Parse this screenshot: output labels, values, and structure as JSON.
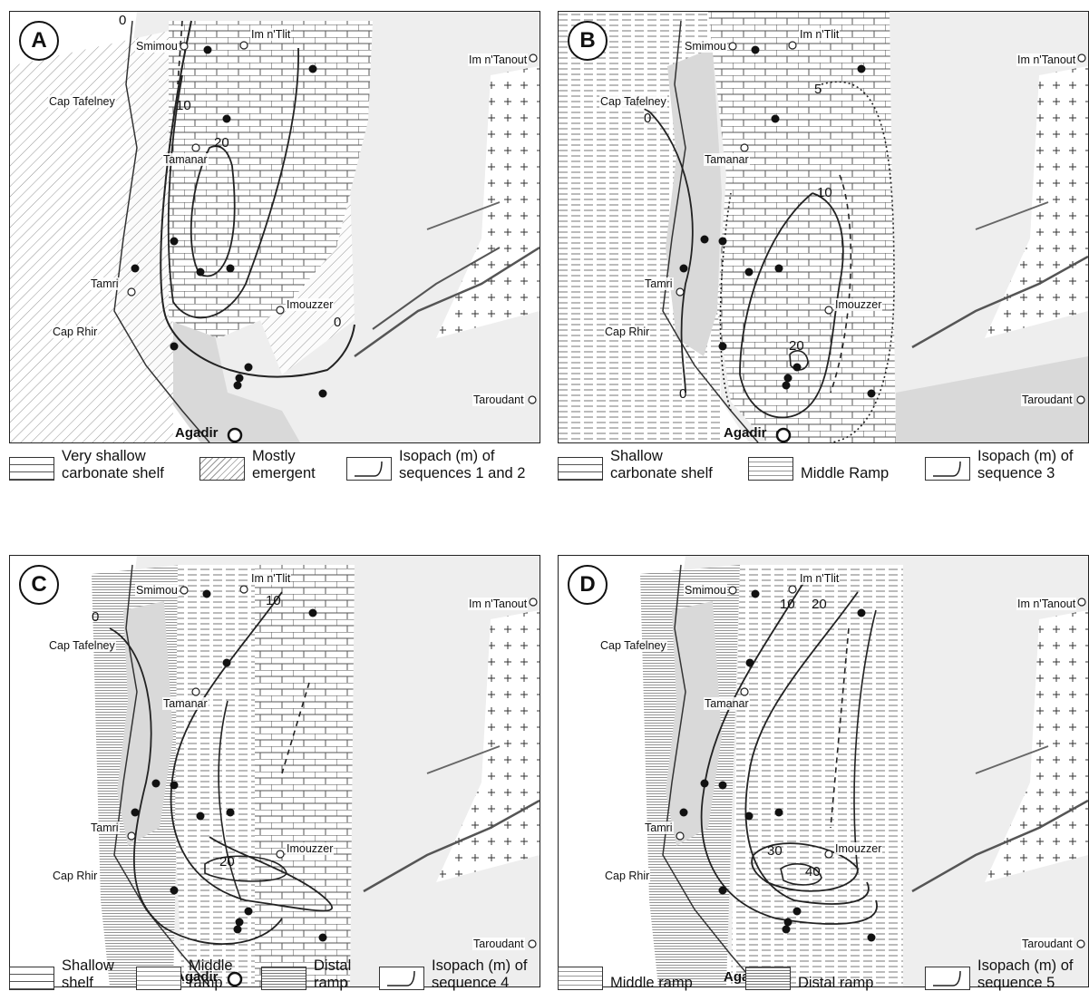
{
  "panels": [
    {
      "id": "A",
      "places": {
        "smimou": "Smimou",
        "im_tlit": "Im n'Tlit",
        "im_tanout": "Im n'Tanout",
        "cap_tafelney": "Cap Tafelney",
        "tamanar": "Tamanar",
        "tamri": "Tamri",
        "imouzzer": "Imouzzer",
        "cap_rhir": "Cap Rhir",
        "taroudant": "Taroudant",
        "agadir": "Agadir"
      },
      "isopach_labels": [
        "0",
        "10",
        "20",
        "0"
      ],
      "legend": [
        {
          "symbol": "brick-pattern",
          "text": "Very shallow carbonate shelf"
        },
        {
          "symbol": "diagonal-hatch",
          "text": "Mostly emergent"
        },
        {
          "symbol": "isopach-line",
          "text": "Isopach (m) of sequences 1 and 2"
        }
      ]
    },
    {
      "id": "B",
      "places": {
        "smimou": "Smimou",
        "im_tlit": "Im n'Tlit",
        "im_tanout": "Im n'Tanout",
        "cap_tafelney": "Cap Tafelney",
        "tamanar": "Tamanar",
        "tamri": "Tamri",
        "imouzzer": "Imouzzer",
        "cap_rhir": "Cap Rhir",
        "taroudant": "Taroudant",
        "agadir": "Agadir"
      },
      "isopach_labels": [
        "0",
        "5",
        "10",
        "20",
        "0"
      ],
      "legend": [
        {
          "symbol": "brick-pattern",
          "text": "Shallow carbonate shelf"
        },
        {
          "symbol": "dashed-lines",
          "text": "Middle Ramp"
        },
        {
          "symbol": "isopach-line",
          "text": "Isopach (m) of sequence 3"
        }
      ]
    },
    {
      "id": "C",
      "places": {
        "smimou": "Smimou",
        "im_tlit": "Im n'Tlit",
        "im_tanout": "Im n'Tanout",
        "cap_tafelney": "Cap Tafelney",
        "tamanar": "Tamanar",
        "tamri": "Tamri",
        "imouzzer": "Imouzzer",
        "cap_rhir": "Cap Rhir",
        "taroudant": "Taroudant",
        "agadir": "Agadir"
      },
      "isopach_labels": [
        "0",
        "10",
        "20"
      ],
      "legend": [
        {
          "symbol": "brick-pattern",
          "text": "Shallow shelf"
        },
        {
          "symbol": "dashed-lines",
          "text": "Middle ramp"
        },
        {
          "symbol": "fine-lines",
          "text": "Distal ramp"
        },
        {
          "symbol": "isopach-line",
          "text": "Isopach (m) of sequence 4"
        }
      ]
    },
    {
      "id": "D",
      "places": {
        "smimou": "Smimou",
        "im_tlit": "Im n'Tlit",
        "im_tanout": "Im n'Tanout",
        "cap_tafelney": "Cap Tafelney",
        "tamanar": "Tamanar",
        "tamri": "Tamri",
        "imouzzer": "Imouzzer",
        "cap_rhir": "Cap Rhir",
        "taroudant": "Taroudant",
        "agadir": "Agadir"
      },
      "isopach_labels": [
        "10",
        "20",
        "30",
        "40"
      ],
      "legend": [
        {
          "symbol": "dashed-lines",
          "text": "Middle ramp"
        },
        {
          "symbol": "fine-lines",
          "text": "Distal ramp"
        },
        {
          "symbol": "isopach-line",
          "text": "Isopach (m) of sequence 5"
        }
      ]
    }
  ],
  "colors": {
    "land_grey": "#d9d9d9",
    "line_dark": "#222222",
    "fault_grey": "#555555"
  }
}
